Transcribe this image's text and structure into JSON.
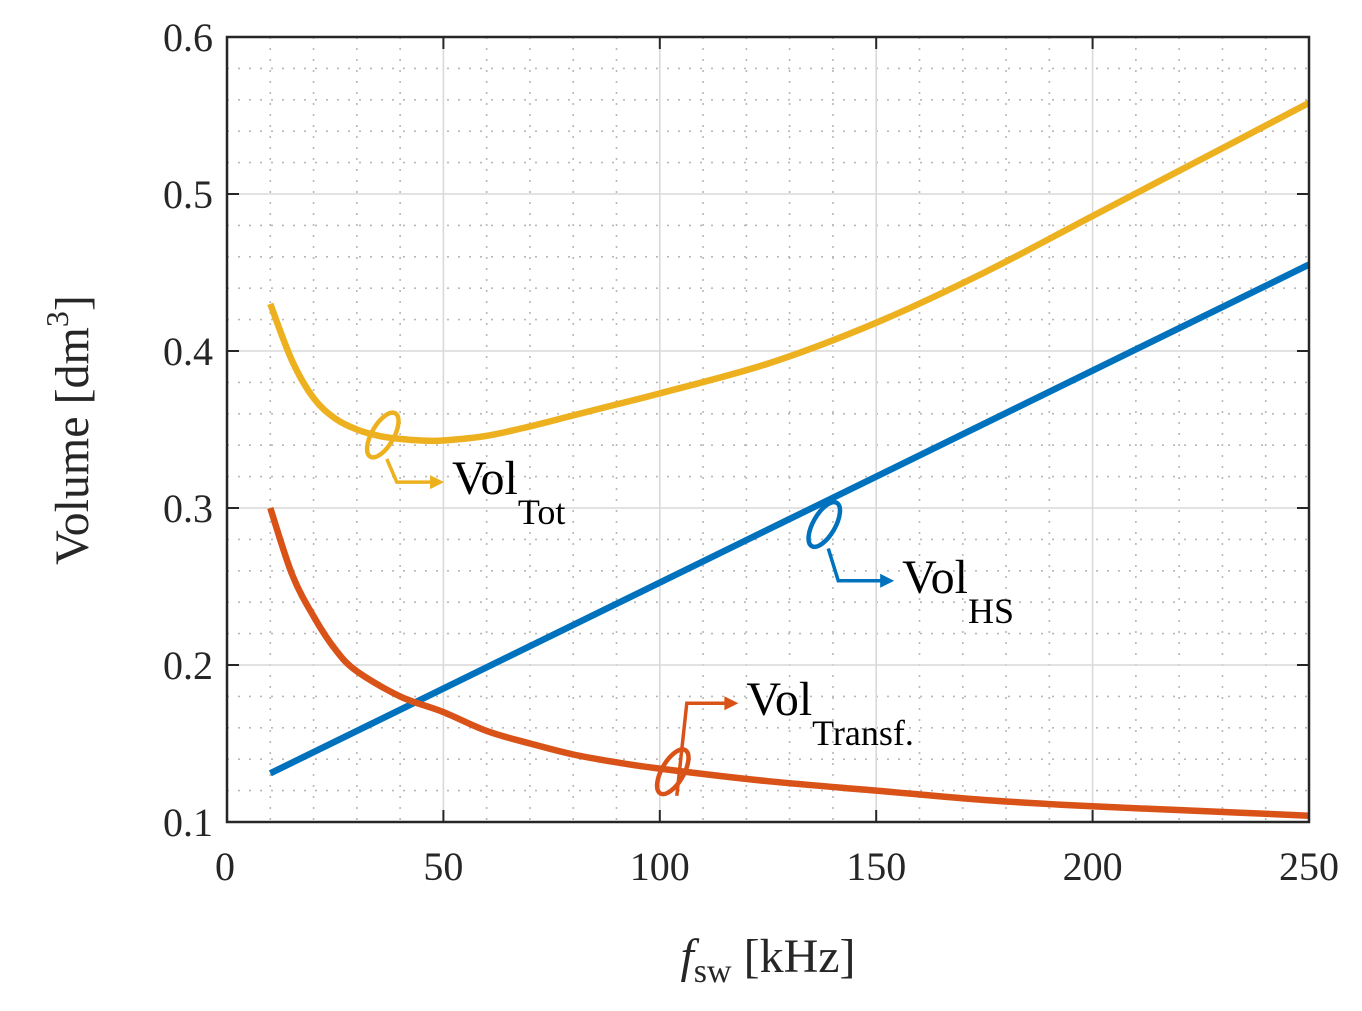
{
  "chart_data": {
    "type": "line",
    "xlabel": {
      "main": "f",
      "sub": "sw",
      "unit": " [kHz]"
    },
    "ylabel": {
      "main": "Volume [dm",
      "sup": "3",
      "close": "]"
    },
    "xlim": [
      0,
      250
    ],
    "ylim": [
      0.1,
      0.6
    ],
    "x_ticks": [
      0,
      50,
      100,
      150,
      200,
      250
    ],
    "y_ticks": [
      0.1,
      0.2,
      0.3,
      0.4,
      0.5,
      0.6
    ],
    "x_tick_labels": [
      "0",
      "50",
      "100",
      "150",
      "200",
      "250"
    ],
    "y_tick_labels": [
      "0.1",
      "0.2",
      "0.3",
      "0.4",
      "0.5",
      "0.6"
    ],
    "grid": true,
    "minor_grid": true,
    "series": [
      {
        "key": "tot",
        "color": "#EDB120",
        "label_main": "Vol",
        "label_sub": "Tot",
        "x": [
          10,
          15,
          20,
          25,
          30,
          35,
          40,
          45,
          50,
          60,
          70,
          80,
          90,
          100,
          125,
          150,
          175,
          200,
          225,
          250
        ],
        "y": [
          0.43,
          0.394,
          0.37,
          0.357,
          0.35,
          0.346,
          0.344,
          0.343,
          0.343,
          0.346,
          0.352,
          0.359,
          0.366,
          0.373,
          0.392,
          0.418,
          0.45,
          0.486,
          0.522,
          0.558
        ]
      },
      {
        "key": "hs",
        "color": "#0072BD",
        "label_main": "Vol",
        "label_sub": "HS",
        "x": [
          10,
          250
        ],
        "y": [
          0.131,
          0.455
        ]
      },
      {
        "key": "transf",
        "color": "#D95319",
        "label_main": "Vol",
        "label_sub": "Transf.",
        "x": [
          10,
          15,
          20,
          25,
          30,
          40,
          50,
          60,
          70,
          80,
          90,
          100,
          125,
          150,
          175,
          200,
          225,
          250
        ],
        "y": [
          0.3,
          0.258,
          0.231,
          0.21,
          0.196,
          0.18,
          0.17,
          0.158,
          0.15,
          0.143,
          0.138,
          0.134,
          0.126,
          0.12,
          0.114,
          0.11,
          0.107,
          0.104
        ]
      }
    ],
    "annotations": [
      {
        "series": "tot",
        "at": [
          36,
          0.3465
        ],
        "text_at": [
          52,
          0.3088
        ]
      },
      {
        "series": "hs",
        "at": [
          138,
          0.2895
        ],
        "text_at": [
          156,
          0.246
        ]
      },
      {
        "series": "transf",
        "at": [
          103,
          0.132
        ],
        "text_at": [
          120,
          0.168
        ]
      }
    ]
  }
}
